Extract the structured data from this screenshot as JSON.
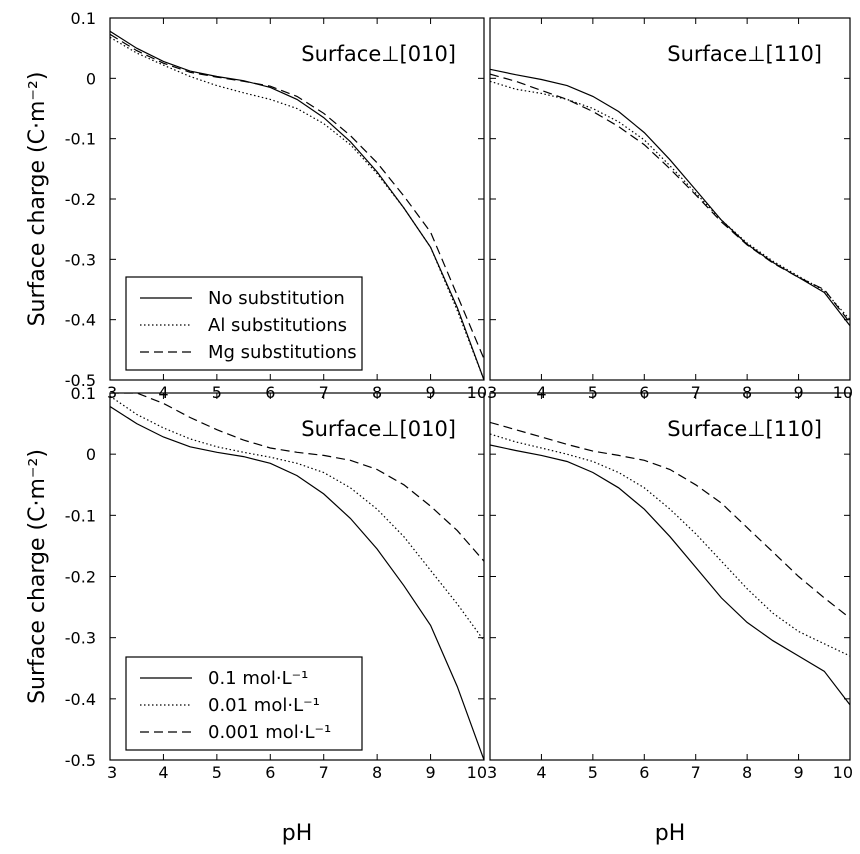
{
  "chart_data": [
    {
      "type": "line",
      "title": "Surface⊥[010]",
      "xlabel": "",
      "ylabel": "Surface charge (C·m⁻²)",
      "xlim": [
        3,
        10
      ],
      "ylim": [
        -0.5,
        0.1
      ],
      "xticks": [
        "3",
        "4",
        "5",
        "6",
        "7",
        "8",
        "9",
        "10"
      ],
      "yticks": [
        "0.1",
        "0",
        "-0.1",
        "-0.2",
        "-0.3",
        "-0.4",
        "-0.5"
      ],
      "legend": "lower-left",
      "series": [
        {
          "name": "No substitution",
          "dash": "solid",
          "x": [
            3,
            3.5,
            4,
            4.5,
            5,
            5.5,
            6,
            6.5,
            7,
            7.5,
            8,
            8.5,
            9,
            9.5,
            10
          ],
          "y": [
            0.078,
            0.05,
            0.028,
            0.012,
            0.003,
            -0.004,
            -0.015,
            -0.035,
            -0.065,
            -0.105,
            -0.155,
            -0.215,
            -0.28,
            -0.38,
            -0.5
          ]
        },
        {
          "name": "Al substitutions",
          "dash": "dotted",
          "x": [
            3,
            3.5,
            4,
            4.5,
            5,
            5.5,
            6,
            6.5,
            7,
            7.5,
            8,
            8.5,
            9,
            9.5,
            10
          ],
          "y": [
            0.068,
            0.042,
            0.022,
            0.003,
            -0.012,
            -0.024,
            -0.035,
            -0.05,
            -0.075,
            -0.11,
            -0.158,
            -0.215,
            -0.28,
            -0.385,
            -0.5
          ]
        },
        {
          "name": "Mg substitutions",
          "dash": "dashed",
          "x": [
            3,
            3.5,
            4,
            4.5,
            5,
            5.5,
            6,
            6.5,
            7,
            7.5,
            8,
            8.5,
            9,
            9.5,
            10
          ],
          "y": [
            0.073,
            0.046,
            0.025,
            0.01,
            0.002,
            -0.005,
            -0.013,
            -0.03,
            -0.058,
            -0.095,
            -0.14,
            -0.195,
            -0.255,
            -0.36,
            -0.465
          ]
        }
      ]
    },
    {
      "type": "line",
      "title": "Surface⊥[110]",
      "xlabel": "",
      "ylabel": "",
      "xlim": [
        3,
        10
      ],
      "ylim": [
        -0.5,
        0.1
      ],
      "xticks": [
        "3",
        "4",
        "5",
        "6",
        "7",
        "8",
        "9",
        "10"
      ],
      "yticks": [],
      "legend": "",
      "series": [
        {
          "dash": "solid",
          "x": [
            3,
            3.5,
            4,
            4.5,
            5,
            5.5,
            6,
            6.5,
            7,
            7.5,
            8,
            8.5,
            9,
            9.5,
            10
          ],
          "y": [
            0.015,
            0.006,
            -0.002,
            -0.012,
            -0.03,
            -0.055,
            -0.09,
            -0.135,
            -0.185,
            -0.235,
            -0.275,
            -0.305,
            -0.33,
            -0.355,
            -0.41
          ]
        },
        {
          "dash": "dotted",
          "x": [
            3,
            3.5,
            4,
            4.5,
            5,
            5.5,
            6,
            6.5,
            7,
            7.5,
            8,
            8.5,
            9,
            9.5,
            10
          ],
          "y": [
            -0.005,
            -0.018,
            -0.025,
            -0.035,
            -0.05,
            -0.072,
            -0.102,
            -0.145,
            -0.19,
            -0.235,
            -0.273,
            -0.303,
            -0.328,
            -0.352,
            -0.4
          ]
        },
        {
          "dash": "dashed",
          "x": [
            3,
            3.5,
            4,
            4.5,
            5,
            5.5,
            6,
            6.5,
            7,
            7.5,
            8,
            8.5,
            9,
            9.5,
            10
          ],
          "y": [
            0.007,
            -0.005,
            -0.02,
            -0.035,
            -0.055,
            -0.08,
            -0.11,
            -0.15,
            -0.193,
            -0.238,
            -0.276,
            -0.306,
            -0.33,
            -0.35,
            -0.405
          ]
        }
      ]
    },
    {
      "type": "line",
      "title": "Surface⊥[010]",
      "xlabel": "pH",
      "ylabel": "Surface charge (C·m⁻²)",
      "xlim": [
        3,
        10
      ],
      "ylim": [
        -0.5,
        0.1
      ],
      "xticks": [
        "3",
        "4",
        "5",
        "6",
        "7",
        "8",
        "9",
        "10"
      ],
      "yticks": [
        "0.1",
        "0",
        "-0.1",
        "-0.2",
        "-0.3",
        "-0.4",
        "-0.5"
      ],
      "legend": "lower-left",
      "series": [
        {
          "name": "0.1 mol·L⁻¹",
          "dash": "solid",
          "x": [
            3,
            3.5,
            4,
            4.5,
            5,
            5.5,
            6,
            6.5,
            7,
            7.5,
            8,
            8.5,
            9,
            9.5,
            10
          ],
          "y": [
            0.078,
            0.05,
            0.028,
            0.012,
            0.003,
            -0.004,
            -0.015,
            -0.035,
            -0.065,
            -0.105,
            -0.155,
            -0.215,
            -0.28,
            -0.38,
            -0.5
          ]
        },
        {
          "name": "0.01 mol·L⁻¹",
          "dash": "dotted",
          "x": [
            3,
            3.5,
            4,
            4.5,
            5,
            5.5,
            6,
            6.5,
            7,
            7.5,
            8,
            8.5,
            9,
            9.5,
            10
          ],
          "y": [
            0.095,
            0.065,
            0.043,
            0.025,
            0.012,
            0.003,
            -0.005,
            -0.015,
            -0.03,
            -0.055,
            -0.09,
            -0.135,
            -0.19,
            -0.245,
            -0.305
          ]
        },
        {
          "name": "0.001 mol·L⁻¹",
          "dash": "dashed",
          "x": [
            3,
            3.5,
            4,
            4.5,
            5,
            5.5,
            6,
            6.5,
            7,
            7.5,
            8,
            8.5,
            9,
            9.5,
            10
          ],
          "y": [
            0.1,
            0.1,
            0.083,
            0.06,
            0.04,
            0.023,
            0.01,
            0.003,
            -0.002,
            -0.01,
            -0.025,
            -0.05,
            -0.085,
            -0.125,
            -0.175
          ]
        }
      ]
    },
    {
      "type": "line",
      "title": "Surface⊥[110]",
      "xlabel": "pH",
      "ylabel": "",
      "xlim": [
        3,
        10
      ],
      "ylim": [
        -0.5,
        0.1
      ],
      "xticks": [
        "3",
        "4",
        "5",
        "6",
        "7",
        "8",
        "9",
        "10"
      ],
      "yticks": [],
      "legend": "",
      "series": [
        {
          "dash": "solid",
          "x": [
            3,
            3.5,
            4,
            4.5,
            5,
            5.5,
            6,
            6.5,
            7,
            7.5,
            8,
            8.5,
            9,
            9.5,
            10
          ],
          "y": [
            0.015,
            0.006,
            -0.002,
            -0.012,
            -0.03,
            -0.055,
            -0.09,
            -0.135,
            -0.185,
            -0.235,
            -0.275,
            -0.305,
            -0.33,
            -0.355,
            -0.41
          ]
        },
        {
          "dash": "dotted",
          "x": [
            3,
            3.5,
            4,
            4.5,
            5,
            5.5,
            6,
            6.5,
            7,
            7.5,
            8,
            8.5,
            9,
            9.5,
            10
          ],
          "y": [
            0.033,
            0.02,
            0.01,
            0.0,
            -0.012,
            -0.03,
            -0.055,
            -0.09,
            -0.13,
            -0.175,
            -0.22,
            -0.26,
            -0.29,
            -0.31,
            -0.33
          ]
        },
        {
          "dash": "dashed",
          "x": [
            3,
            3.5,
            4,
            4.5,
            5,
            5.5,
            6,
            6.5,
            7,
            7.5,
            8,
            8.5,
            9,
            9.5,
            10
          ],
          "y": [
            0.052,
            0.04,
            0.028,
            0.016,
            0.005,
            -0.002,
            -0.01,
            -0.025,
            -0.05,
            -0.08,
            -0.12,
            -0.16,
            -0.2,
            -0.235,
            -0.268
          ]
        }
      ]
    }
  ]
}
